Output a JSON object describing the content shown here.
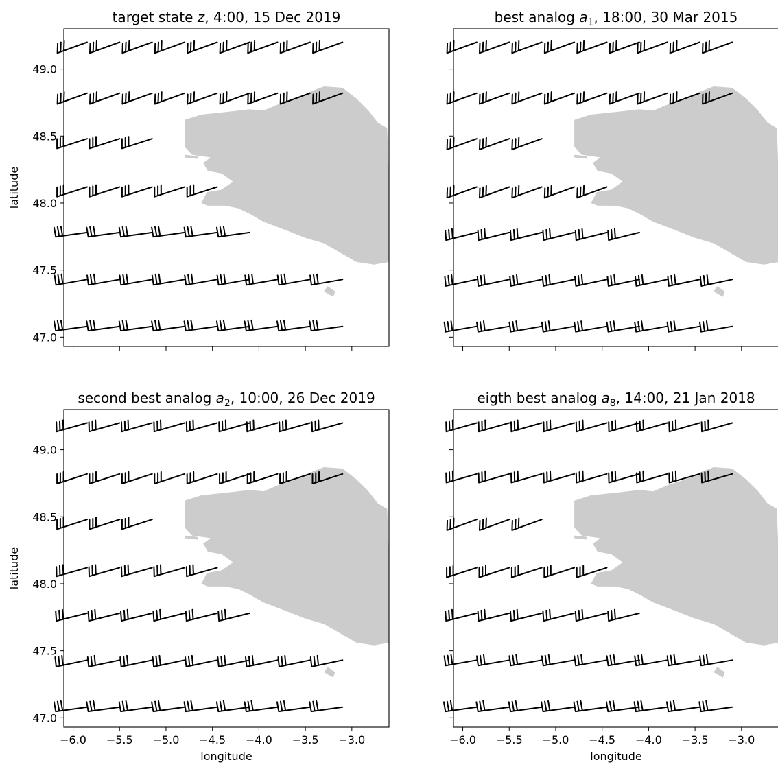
{
  "chart_data": [
    {
      "type": "barbs",
      "title_text": "target state ",
      "title_var": "z",
      "title_sub": "",
      "title_rest": ", 4:00, 15 Dec 2019",
      "xlabel": "",
      "ylabel": "latitude",
      "xlim": [
        -6.1,
        -2.6
      ],
      "ylim": [
        46.93,
        49.3
      ],
      "xticks": [
        -6.0,
        -5.5,
        -5.0,
        -4.5,
        -4.0,
        -3.5,
        -3.0
      ],
      "xtick_labels": [
        "",
        "",
        "",
        "",
        "",
        "",
        ""
      ],
      "yticks": [
        47.0,
        47.5,
        48.0,
        48.5,
        49.0
      ],
      "ytick_labels": [
        "47.0",
        "47.5",
        "48.0",
        "48.5",
        "49.0"
      ],
      "grid": false,
      "land_color": "#cccccc",
      "barb_color": "#000000",
      "rows": [
        {
          "lat": 49.2,
          "lon": [
            -5.85,
            -5.5,
            -5.15,
            -4.8,
            -4.45,
            -4.1,
            -3.8,
            -3.45,
            -3.1
          ],
          "barbs": 3,
          "angle": 20
        },
        {
          "lat": 48.82,
          "lon": [
            -5.85,
            -5.5,
            -5.15,
            -4.8,
            -4.45,
            -4.1,
            -3.8,
            -3.45,
            -3.1
          ],
          "barbs": 3,
          "angle": 20
        },
        {
          "lat": 48.48,
          "lon": [
            -5.85,
            -5.5,
            -5.15
          ],
          "barbs": 3,
          "angle": 18
        },
        {
          "lat": 48.12,
          "lon": [
            -5.85,
            -5.5,
            -5.15,
            -4.8,
            -4.45
          ],
          "barbs": 3,
          "angle": 18
        },
        {
          "lat": 47.78,
          "lon": [
            -5.85,
            -5.5,
            -5.15,
            -4.8,
            -4.45,
            -4.1
          ],
          "barbs": 3,
          "angle": 8
        },
        {
          "lat": 47.43,
          "lon": [
            -5.85,
            -5.5,
            -5.15,
            -4.8,
            -4.45,
            -4.1,
            -3.8,
            -3.45,
            -3.1
          ],
          "barbs": 3,
          "angle": 10
        },
        {
          "lat": 47.08,
          "lon": [
            -5.85,
            -5.5,
            -5.15,
            -4.8,
            -4.45,
            -4.1,
            -3.8,
            -3.45,
            -3.1
          ],
          "barbs": 3,
          "angle": 8
        }
      ]
    },
    {
      "type": "barbs",
      "title_text": "best analog ",
      "title_var": "a",
      "title_sub": "1",
      "title_rest": ", 18:00, 30 Mar 2015",
      "xlabel": "",
      "ylabel": "",
      "xlim": [
        -6.1,
        -2.6
      ],
      "ylim": [
        46.93,
        49.3
      ],
      "xticks": [
        -6.0,
        -5.5,
        -5.0,
        -4.5,
        -4.0,
        -3.5,
        -3.0
      ],
      "xtick_labels": [
        "",
        "",
        "",
        "",
        "",
        "",
        ""
      ],
      "yticks": [
        47.0,
        47.5,
        48.0,
        48.5,
        49.0
      ],
      "ytick_labels": [
        "",
        "",
        "",
        "",
        ""
      ],
      "grid": false,
      "land_color": "#cccccc",
      "barb_color": "#000000",
      "rows": [
        {
          "lat": 49.2,
          "lon": [
            -5.85,
            -5.5,
            -5.15,
            -4.8,
            -4.45,
            -4.1,
            -3.8,
            -3.45,
            -3.1
          ],
          "barbs": 3,
          "angle": 20
        },
        {
          "lat": 48.82,
          "lon": [
            -5.85,
            -5.5,
            -5.15,
            -4.8,
            -4.45,
            -4.1,
            -3.8,
            -3.45,
            -3.1
          ],
          "barbs": 3,
          "angle": 20
        },
        {
          "lat": 48.48,
          "lon": [
            -5.85,
            -5.5,
            -5.15
          ],
          "barbs": 3,
          "angle": 20
        },
        {
          "lat": 48.12,
          "lon": [
            -5.85,
            -5.5,
            -5.15,
            -4.8,
            -4.45
          ],
          "barbs": 3,
          "angle": 20
        },
        {
          "lat": 47.78,
          "lon": [
            -5.85,
            -5.5,
            -5.15,
            -4.8,
            -4.45,
            -4.1
          ],
          "barbs": 3,
          "angle": 14
        },
        {
          "lat": 47.43,
          "lon": [
            -5.85,
            -5.5,
            -5.15,
            -4.8,
            -4.45,
            -4.1,
            -3.8,
            -3.45,
            -3.1
          ],
          "barbs": 3,
          "angle": 12
        },
        {
          "lat": 47.08,
          "lon": [
            -5.85,
            -5.5,
            -5.15,
            -4.8,
            -4.45,
            -4.1,
            -3.8,
            -3.45,
            -3.1
          ],
          "barbs": 3,
          "angle": 10
        }
      ]
    },
    {
      "type": "barbs",
      "title_text": "second best analog ",
      "title_var": "a",
      "title_sub": "2",
      "title_rest": ", 10:00, 26 Dec 2019",
      "xlabel": "longitude",
      "ylabel": "latitude",
      "xlim": [
        -6.1,
        -2.6
      ],
      "ylim": [
        46.93,
        49.3
      ],
      "xticks": [
        -6.0,
        -5.5,
        -5.0,
        -4.5,
        -4.0,
        -3.5,
        -3.0
      ],
      "xtick_labels": [
        "−6.0",
        "−5.5",
        "−5.0",
        "−4.5",
        "−4.0",
        "−3.5",
        "−3.0"
      ],
      "yticks": [
        47.0,
        47.5,
        48.0,
        48.5,
        49.0
      ],
      "ytick_labels": [
        "47.0",
        "47.5",
        "48.0",
        "48.5",
        "49.0"
      ],
      "grid": false,
      "land_color": "#cccccc",
      "barb_color": "#000000",
      "rows": [
        {
          "lat": 49.2,
          "lon": [
            -5.85,
            -5.5,
            -5.15,
            -4.8,
            -4.45,
            -4.1,
            -3.8,
            -3.45,
            -3.1
          ],
          "barbs": 3,
          "angle": 16
        },
        {
          "lat": 48.82,
          "lon": [
            -5.85,
            -5.5,
            -5.15,
            -4.8,
            -4.45,
            -4.1,
            -3.8,
            -3.45,
            -3.1
          ],
          "barbs": 3,
          "angle": 18
        },
        {
          "lat": 48.48,
          "lon": [
            -5.85,
            -5.5,
            -5.15
          ],
          "barbs": 3,
          "angle": 18
        },
        {
          "lat": 48.12,
          "lon": [
            -5.85,
            -5.5,
            -5.15,
            -4.8,
            -4.45
          ],
          "barbs": 3,
          "angle": 16
        },
        {
          "lat": 47.78,
          "lon": [
            -5.85,
            -5.5,
            -5.15,
            -4.8,
            -4.45,
            -4.1
          ],
          "barbs": 3,
          "angle": 14
        },
        {
          "lat": 47.43,
          "lon": [
            -5.85,
            -5.5,
            -5.15,
            -4.8,
            -4.45,
            -4.1,
            -3.8,
            -3.45,
            -3.1
          ],
          "barbs": 3,
          "angle": 12
        },
        {
          "lat": 47.08,
          "lon": [
            -5.85,
            -5.5,
            -5.15,
            -4.8,
            -4.45,
            -4.1,
            -3.8,
            -3.45,
            -3.1
          ],
          "barbs": 3,
          "angle": 8
        }
      ]
    },
    {
      "type": "barbs",
      "title_text": "eigth best analog ",
      "title_var": "a",
      "title_sub": "8",
      "title_rest": ", 14:00, 21 Jan 2018",
      "xlabel": "longitude",
      "ylabel": "",
      "xlim": [
        -6.1,
        -2.6
      ],
      "ylim": [
        46.93,
        49.3
      ],
      "xticks": [
        -6.0,
        -5.5,
        -5.0,
        -4.5,
        -4.0,
        -3.5,
        -3.0
      ],
      "xtick_labels": [
        "−6.0",
        "−5.5",
        "−5.0",
        "−4.5",
        "−4.0",
        "−3.5",
        "−3.0"
      ],
      "yticks": [
        47.0,
        47.5,
        48.0,
        48.5,
        49.0
      ],
      "ytick_labels": [
        "",
        "",
        "",
        "",
        ""
      ],
      "grid": false,
      "land_color": "#cccccc",
      "barb_color": "#000000",
      "rows": [
        {
          "lat": 49.2,
          "lon": [
            -5.85,
            -5.5,
            -5.15,
            -4.8,
            -4.45,
            -4.1,
            -3.8,
            -3.45,
            -3.1
          ],
          "barbs": 3,
          "angle": 16
        },
        {
          "lat": 48.82,
          "lon": [
            -5.85,
            -5.5,
            -5.15,
            -4.8,
            -4.45,
            -4.1,
            -3.8,
            -3.45,
            -3.1
          ],
          "barbs": 3,
          "angle": 16
        },
        {
          "lat": 48.48,
          "lon": [
            -5.85,
            -5.5,
            -5.15
          ],
          "barbs": 3,
          "angle": 20
        },
        {
          "lat": 48.12,
          "lon": [
            -5.85,
            -5.5,
            -5.15,
            -4.8,
            -4.45
          ],
          "barbs": 3,
          "angle": 18
        },
        {
          "lat": 47.78,
          "lon": [
            -5.85,
            -5.5,
            -5.15,
            -4.8,
            -4.45,
            -4.1
          ],
          "barbs": 3,
          "angle": 14
        },
        {
          "lat": 47.43,
          "lon": [
            -5.85,
            -5.5,
            -5.15,
            -4.8,
            -4.45,
            -4.1,
            -3.8,
            -3.45,
            -3.1
          ],
          "barbs": 3,
          "angle": 10
        },
        {
          "lat": 47.08,
          "lon": [
            -5.85,
            -5.5,
            -5.15,
            -4.8,
            -4.45,
            -4.1,
            -3.8,
            -3.45,
            -3.1
          ],
          "barbs": 3,
          "angle": 8
        }
      ]
    }
  ]
}
